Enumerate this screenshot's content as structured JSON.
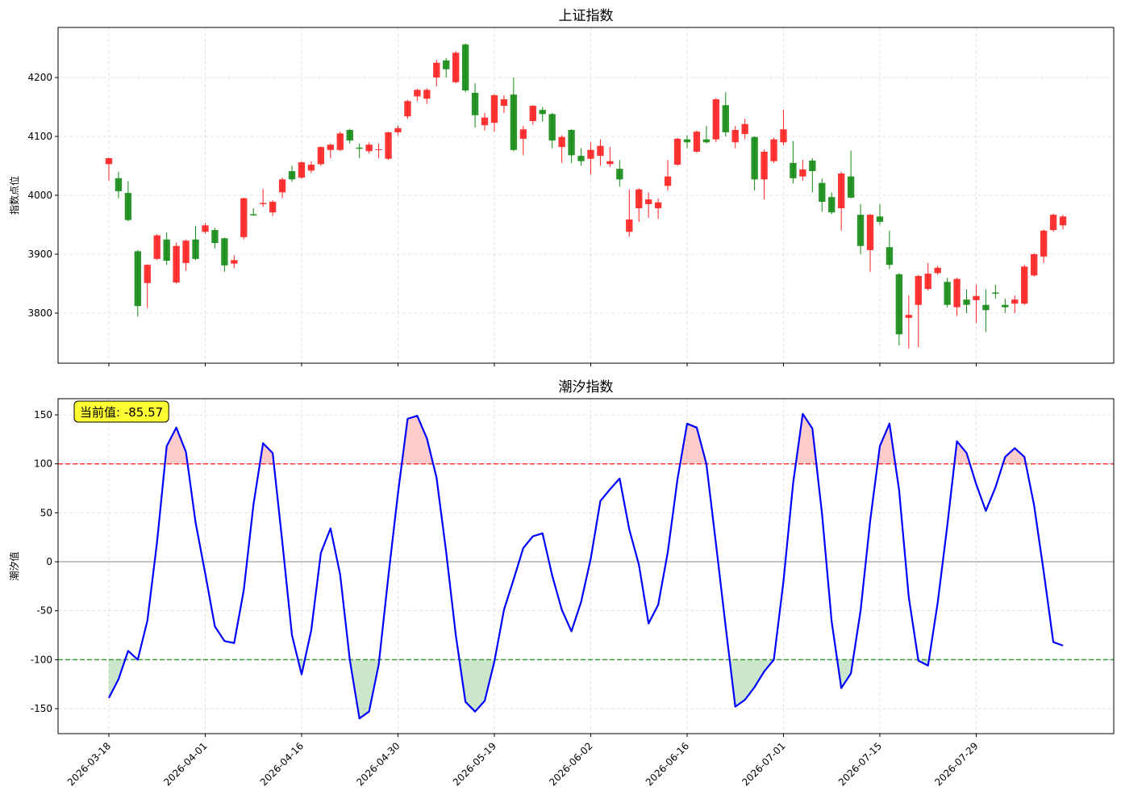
{
  "chart_data": [
    {
      "type": "candlestick",
      "title": "上证指数",
      "ylabel": "指数点位",
      "open": [
        4053,
        4029,
        4004,
        3905,
        3851,
        3892,
        3925,
        3852,
        3885,
        3925,
        3938,
        3941,
        3927,
        3884,
        3929,
        3968,
        3985,
        3971,
        4005,
        4041,
        4030,
        4042,
        4053,
        4077,
        4077,
        4111,
        4081,
        4075,
        4077,
        4062,
        4107,
        4134,
        4168,
        4164,
        4200,
        4229,
        4192,
        4256,
        4174,
        4119,
        4123,
        4152,
        4171,
        4096,
        4126,
        4145,
        4138,
        4082,
        4111,
        4067,
        4062,
        4067,
        4053,
        4045,
        3938,
        3978,
        3985,
        3978,
        4016,
        4052,
        4095,
        4074,
        4095,
        4095,
        4153,
        4090,
        4104,
        4099,
        4027,
        4058,
        4090,
        4055,
        4032,
        4059,
        4021,
        3997,
        3978,
        4032,
        3967,
        3907,
        3964,
        3912,
        3866,
        3792,
        3814,
        3841,
        3868,
        3853,
        3810,
        3823,
        3822,
        3814,
        3835,
        3814,
        3816,
        3816,
        3864,
        3896,
        3941,
        3949
      ],
      "high": [
        4064,
        4040,
        4024,
        3907,
        3883,
        3934,
        3937,
        3920,
        3925,
        3948,
        3953,
        3945,
        3928,
        3898,
        3996,
        3978,
        4011,
        3992,
        4030,
        4050,
        4058,
        4058,
        4083,
        4088,
        4108,
        4113,
        4088,
        4090,
        4088,
        4108,
        4118,
        4162,
        4181,
        4182,
        4230,
        4233,
        4245,
        4258,
        4190,
        4140,
        4172,
        4170,
        4200,
        4118,
        4153,
        4150,
        4140,
        4102,
        4112,
        4080,
        4090,
        4095,
        4082,
        4060,
        4010,
        4012,
        4005,
        3995,
        4060,
        4098,
        4102,
        4110,
        4118,
        4165,
        4175,
        4118,
        4130,
        4100,
        4078,
        4098,
        4145,
        4092,
        4060,
        4063,
        4028,
        4005,
        4040,
        4076,
        3985,
        3968,
        3985,
        3940,
        3868,
        3830,
        3865,
        3885,
        3880,
        3860,
        3860,
        3840,
        3848,
        3840,
        3848,
        3825,
        3830,
        3882,
        3902,
        3942,
        3969,
        3967
      ],
      "low": [
        4025,
        3995,
        3956,
        3794,
        3808,
        3890,
        3882,
        3850,
        3872,
        3890,
        3935,
        3910,
        3870,
        3876,
        3925,
        3965,
        3980,
        3965,
        3995,
        4023,
        4028,
        4038,
        4050,
        4063,
        4075,
        4088,
        4063,
        4071,
        4063,
        4060,
        4102,
        4130,
        4160,
        4155,
        4185,
        4200,
        4190,
        4175,
        4115,
        4110,
        4108,
        4140,
        4075,
        4068,
        4120,
        4125,
        4080,
        4055,
        4055,
        4050,
        4035,
        4050,
        4048,
        4015,
        3930,
        3955,
        3962,
        3960,
        4008,
        4050,
        4080,
        4072,
        4088,
        4090,
        4100,
        4080,
        4095,
        4008,
        3993,
        4055,
        4085,
        4020,
        4025,
        4005,
        3972,
        3968,
        3940,
        3995,
        3900,
        3870,
        3950,
        3875,
        3745,
        3740,
        3742,
        3838,
        3865,
        3810,
        3795,
        3800,
        3783,
        3768,
        3825,
        3800,
        3800,
        3814,
        3862,
        3885,
        3938,
        3942
      ],
      "close": [
        4063,
        4007,
        3958,
        3812,
        3882,
        3932,
        3889,
        3914,
        3923,
        3892,
        3949,
        3919,
        3881,
        3890,
        3995,
        3966,
        3987,
        3989,
        4027,
        4027,
        4056,
        4052,
        4082,
        4086,
        4105,
        4093,
        4079,
        4086,
        4078,
        4107,
        4114,
        4160,
        4179,
        4179,
        4225,
        4214,
        4242,
        4178,
        4136,
        4132,
        4170,
        4163,
        4077,
        4112,
        4152,
        4138,
        4093,
        4099,
        4068,
        4058,
        4077,
        4084,
        4058,
        4027,
        3959,
        4010,
        3993,
        3988,
        4032,
        4096,
        4090,
        4108,
        4090,
        4163,
        4107,
        4111,
        4121,
        4027,
        4074,
        4095,
        4112,
        4029,
        4044,
        4041,
        3989,
        3971,
        4037,
        3996,
        3914,
        3967,
        3955,
        3882,
        3764,
        3797,
        3863,
        3867,
        3877,
        3814,
        3858,
        3814,
        3829,
        3805,
        3833,
        3810,
        3823,
        3879,
        3900,
        3940,
        3967,
        3964
      ],
      "up_color": "#ff2020",
      "down_color": "#138a13",
      "ylim": [
        3715,
        4285
      ],
      "yticks": [
        3800,
        3900,
        4000,
        4100,
        4200
      ],
      "xlim": [
        -5.27,
        104.27
      ],
      "grid": true
    },
    {
      "type": "line",
      "title": "潮汐指数",
      "ylabel": "潮汐值",
      "categories": [
        "2026-03-18",
        null,
        null,
        null,
        null,
        null,
        null,
        null,
        null,
        null,
        "2026-04-01",
        null,
        null,
        null,
        null,
        null,
        null,
        null,
        null,
        null,
        "2026-04-16",
        null,
        null,
        null,
        null,
        null,
        null,
        null,
        null,
        null,
        "2026-04-30",
        null,
        null,
        null,
        null,
        null,
        null,
        null,
        null,
        null,
        "2026-05-19",
        null,
        null,
        null,
        null,
        null,
        null,
        null,
        null,
        null,
        "2026-06-02",
        null,
        null,
        null,
        null,
        null,
        null,
        null,
        null,
        null,
        "2026-06-16",
        null,
        null,
        null,
        null,
        null,
        null,
        null,
        null,
        null,
        "2026-07-01",
        null,
        null,
        null,
        null,
        null,
        null,
        null,
        null,
        null,
        "2026-07-15",
        null,
        null,
        null,
        null,
        null,
        null,
        null,
        null,
        null,
        "2026-07-29",
        null,
        null,
        null,
        null,
        null,
        null,
        null,
        null,
        null
      ],
      "values": [
        -139,
        -120,
        -91,
        -100,
        -60,
        20,
        118,
        137,
        112,
        40,
        -12,
        -66,
        -81,
        -83,
        -29,
        58,
        121,
        111,
        20,
        -75,
        -115,
        -70,
        9,
        34,
        -13,
        -100,
        -160,
        -153,
        -105,
        -15,
        70,
        146,
        149,
        126,
        86,
        10,
        -75,
        -143,
        -153,
        -142,
        -102,
        -49,
        -18,
        14,
        26,
        29,
        -14,
        -49,
        -71,
        -41,
        3,
        62,
        74,
        85,
        33,
        -3,
        -63,
        -44,
        10,
        84,
        141,
        137,
        100,
        18,
        -66,
        -148,
        -141,
        -128,
        -112,
        -100,
        -20,
        80,
        151,
        136,
        49,
        -61,
        -129,
        -114,
        -50,
        42,
        118,
        141,
        73,
        -36,
        -101,
        -106,
        -42,
        37,
        123,
        111,
        79,
        52,
        76,
        107,
        116,
        107,
        58,
        -10,
        -82,
        -85.57
      ],
      "color": "#0000ff",
      "upper_threshold": 100,
      "upper_color": "#ff0000",
      "lower_threshold": -100,
      "lower_color": "#008000",
      "annotation": "当前值: -85.57",
      "ylim": [
        -175.5,
        166.5
      ],
      "yticks": [
        -150,
        -100,
        -50,
        0,
        50,
        100,
        150
      ],
      "xlim": [
        -5.27,
        104.27
      ],
      "grid": true
    }
  ]
}
